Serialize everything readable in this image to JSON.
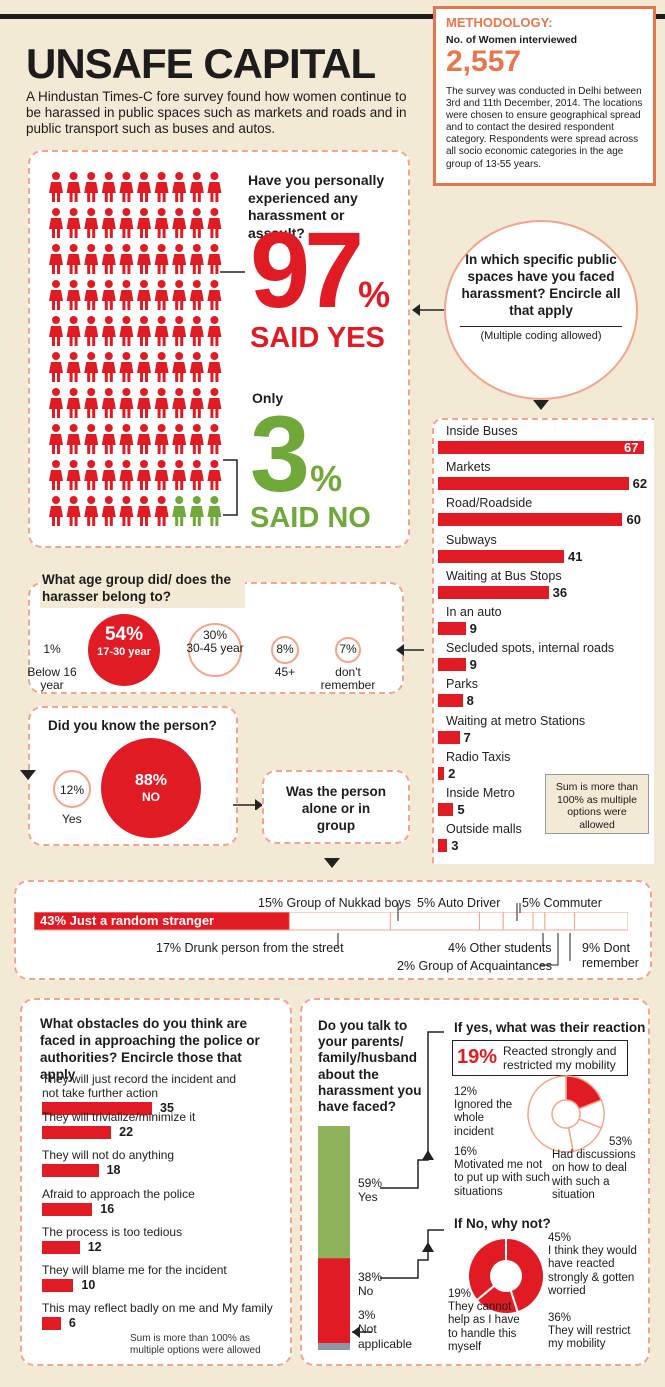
{
  "title": "UNSAFE CAPITAL",
  "intro": "A Hindustan Times-C fore survey found how women continue to be harassed in public spaces such as markets and roads and in public transport such as buses and autos.",
  "methodology": {
    "heading": "METHODOLOGY:",
    "women_label": "No. of Women interviewed",
    "women_count": "2,557",
    "text": "The survey was conducted in Delhi between 3rd and 11th December, 2014. The locations were chosen to ensure geographical spread and to contact the desired respondent category. Respondents were spread across all socio economic categories in the age group of 13-55 years."
  },
  "q_harassment": {
    "question": "Have you personally experienced any harassment or assault?",
    "yes_value": "97",
    "percent_sign": "%",
    "yes_label": "SAID YES",
    "only": "Only",
    "no_value": "3",
    "no_label": "SAID NO"
  },
  "q_spaces": {
    "question": "In which specific public spaces have you faced harassment? Encircle all that apply",
    "note": "(Multiple coding allowed)",
    "sum_note": "Sum is more than 100% as multiple options were allowed"
  },
  "q_age": {
    "question": "What age group did/ does the harasser belong to?",
    "items": [
      {
        "pct": "1%",
        "label": "Below 16 year"
      },
      {
        "pct": "54%",
        "label": "17-30 year"
      },
      {
        "pct": "30%",
        "label": "30-45 year"
      },
      {
        "pct": "8%",
        "label": "45+"
      },
      {
        "pct": "7%",
        "label": "don't remember"
      }
    ]
  },
  "q_know": {
    "question": "Did you know the person?",
    "yes_pct": "12%",
    "yes_label": "Yes",
    "no_pct": "88%",
    "no_label": "NO"
  },
  "q_group": {
    "question": "Was the person alone or in group",
    "labels": {
      "stranger": "43% Just a random stranger",
      "nukkad": "15% Group of Nukkad boys",
      "auto": "5% Auto Driver",
      "commuter": "5% Commuter",
      "drunk": "17% Drunk person from the street",
      "students": "4% Other students",
      "acquaintances": "2% Group of Acquaintances",
      "dont_remember": "9% Dont remember"
    }
  },
  "q_obstacles": {
    "question": "What obstacles do you think are faced in approaching the police or authorities? Encircle those that apply",
    "sum_note": "Sum is more than 100% as multiple options were allowed"
  },
  "q_talk": {
    "question": "Do you talk to your parents/ family/husband about the harassment you have faced?",
    "yes": {
      "pct": "59%",
      "label": "Yes"
    },
    "no": {
      "pct": "38%",
      "label": "No"
    },
    "na": {
      "pct": "3%",
      "label": "Not applicable"
    }
  },
  "q_reaction": {
    "question": "If yes, what was their reaction",
    "strong_pct": "19%",
    "strong_label": "Reacted strongly and restricted my mobility",
    "ignored_pct": "12%",
    "ignored_label": "Ignored the whole incident",
    "motivated_pct": "16%",
    "motivated_label": "Motivated me not to put up with such situations",
    "discuss_pct": "53%",
    "discuss_label": "Had discussions on how to deal with such a situation"
  },
  "q_why_not": {
    "question": "If No, why not?",
    "worried_pct": "45%",
    "worried_label": "I think they would have reacted strongly & gotten worried",
    "cannot_pct": "19%",
    "cannot_label": "They cannot help as I have to handle this myself",
    "restrict_pct": "36%",
    "restrict_label": "They will restrict my mobility"
  },
  "chart_data": [
    {
      "type": "bar",
      "title": "In which specific public spaces have you faced harassment?",
      "categories": [
        "Inside Buses",
        "Markets",
        "Road/Roadside",
        "Subways",
        "Waiting at Bus Stops",
        "In an auto",
        "Secluded spots, internal roads",
        "Parks",
        "Waiting at metro Stations",
        "Radio Taxis",
        "Inside Metro",
        "Outside malls"
      ],
      "values": [
        67,
        62,
        60,
        41,
        36,
        9,
        9,
        8,
        7,
        2,
        5,
        3
      ]
    },
    {
      "type": "bar",
      "title": "What obstacles do you think are faced in approaching the police or authorities?",
      "categories": [
        "They will just record the incident and not take further action",
        "They will trivialize/minimize it",
        "They will not do anything",
        "Afraid to approach the police",
        "The process is too tedious",
        "They will blame me for the incident",
        "This may reflect badly on me and My family"
      ],
      "values": [
        35,
        22,
        18,
        16,
        12,
        10,
        6
      ]
    },
    {
      "type": "pie",
      "title": "What age group did/ does the harasser belong to?",
      "categories": [
        "Below 16 year",
        "17-30 year",
        "30-45 year",
        "45+",
        "don't remember"
      ],
      "values": [
        1,
        54,
        30,
        8,
        7
      ]
    },
    {
      "type": "bar",
      "title": "Was the person alone or in group",
      "categories": [
        "Just a random stranger",
        "Group of Nukkad boys",
        "Auto Driver",
        "Commuter",
        "Drunk person from the street",
        "Other students",
        "Group of Acquaintances",
        "Dont remember"
      ],
      "values": [
        43,
        15,
        5,
        5,
        17,
        4,
        2,
        9
      ]
    },
    {
      "type": "pie",
      "title": "If yes, what was their reaction",
      "categories": [
        "Reacted strongly and restricted my mobility",
        "Ignored the whole incident",
        "Motivated me not to put up with such situations",
        "Had discussions on how to deal with such a situation"
      ],
      "values": [
        19,
        12,
        16,
        53
      ]
    },
    {
      "type": "pie",
      "title": "If No, why not?",
      "categories": [
        "I think they would have reacted strongly & gotten worried",
        "They cannot help as I have to handle this myself",
        "They will restrict my mobility"
      ],
      "values": [
        45,
        19,
        36
      ]
    },
    {
      "type": "bar",
      "title": "Do you talk to your parents/family/husband about the harassment you have faced?",
      "categories": [
        "Yes",
        "No",
        "Not applicable"
      ],
      "values": [
        59,
        38,
        3
      ]
    }
  ]
}
